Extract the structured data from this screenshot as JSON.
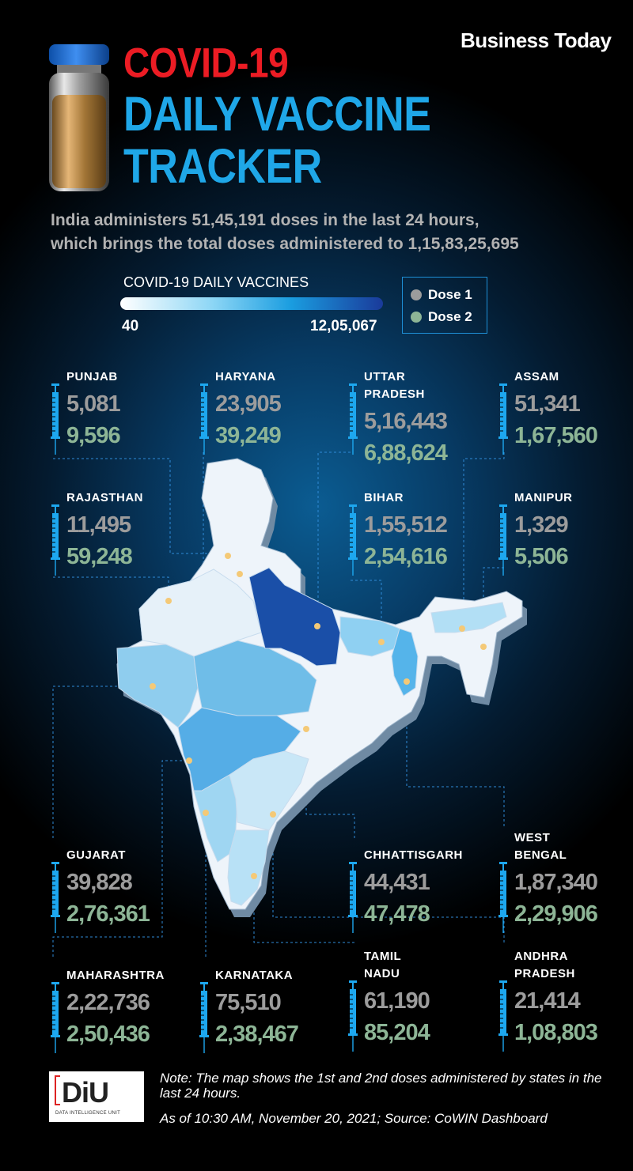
{
  "header": {
    "brand": "Business Today",
    "title_line1": "COVID-19",
    "title_line2": "DAILY VACCINE",
    "title_line3": "TRACKER",
    "subtitle_line1": "India administers 51,45,191 doses in the last 24 hours,",
    "subtitle_line2": "which brings the total doses administered to 1,15,83,25,695"
  },
  "legend": {
    "title": "COVID-19 DAILY VACCINES",
    "min": "40",
    "max": "12,05,067",
    "dose1": "Dose 1",
    "dose2": "Dose 2",
    "dose1_color": "#9c9c9c",
    "dose2_color": "#8db596"
  },
  "states": {
    "punjab": {
      "name": "PUNJAB",
      "dose1": "5,081",
      "dose2": "9,596"
    },
    "haryana": {
      "name": "HARYANA",
      "dose1": "23,905",
      "dose2": "39,249"
    },
    "uttar_pradesh": {
      "name1": "UTTAR",
      "name2": "PRADESH",
      "dose1": "5,16,443",
      "dose2": "6,88,624"
    },
    "assam": {
      "name": "ASSAM",
      "dose1": "51,341",
      "dose2": "1,67,560"
    },
    "rajasthan": {
      "name": "RAJASTHAN",
      "dose1": "11,495",
      "dose2": "59,248"
    },
    "bihar": {
      "name": "BIHAR",
      "dose1": "1,55,512",
      "dose2": "2,54,616"
    },
    "manipur": {
      "name": "MANIPUR",
      "dose1": "1,329",
      "dose2": "5,506"
    },
    "gujarat": {
      "name": "GUJARAT",
      "dose1": "39,828",
      "dose2": "2,76,361"
    },
    "chhattisgarh": {
      "name": "CHHATTISGARH",
      "dose1": "44,431",
      "dose2": "47,478"
    },
    "west_bengal": {
      "name1": "WEST",
      "name2": "BENGAL",
      "dose1": "1,87,340",
      "dose2": "2,29,906"
    },
    "maharashtra": {
      "name": "MAHARASHTRA",
      "dose1": "2,22,736",
      "dose2": "2,50,436"
    },
    "karnataka": {
      "name": "KARNATAKA",
      "dose1": "75,510",
      "dose2": "2,38,467"
    },
    "tamil_nadu": {
      "name1": "TAMIL",
      "name2": "NADU",
      "dose1": "61,190",
      "dose2": "85,204"
    },
    "andhra_pradesh": {
      "name1": "ANDHRA",
      "name2": "PRADESH",
      "dose1": "21,414",
      "dose2": "1,08,803"
    }
  },
  "footer": {
    "logo_text": "DiU",
    "logo_subtext": "DATA INTELLIGENCE UNIT",
    "note": "Note: The map shows the 1st and 2nd doses administered by states in the last 24 hours.",
    "source": "As of 10:30 AM, November 20, 2021; Source: CoWIN Dashboard"
  }
}
